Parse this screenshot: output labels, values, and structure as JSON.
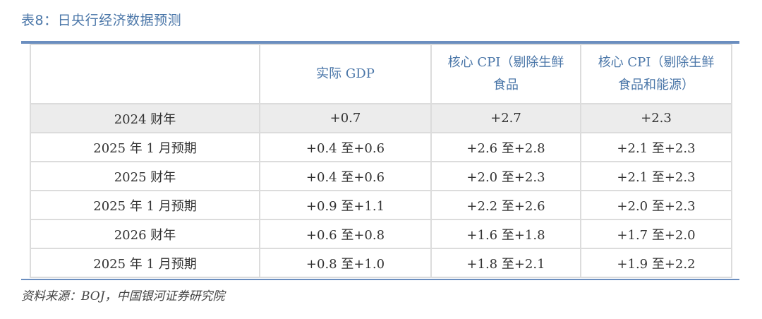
{
  "caption": "表8：日央行经济数据预测",
  "table": {
    "headers": [
      "",
      "实际 GDP",
      "核心 CPI（剔除生鲜食品",
      "核心 CPI（剔除生鲜食品和能源）"
    ],
    "rows": [
      [
        "2024 财年",
        "+0.7",
        "+2.7",
        "+2.3"
      ],
      [
        "2025 年 1 月预期",
        "+0.4 至+0.6",
        "+2.6 至+2.8",
        "+2.1 至+2.3"
      ],
      [
        "2025 财年",
        "+0.4 至+0.6",
        "+2.0 至+2.3",
        "+2.1 至+2.3"
      ],
      [
        "2025 年 1 月预期",
        "+0.9 至+1.1",
        "+2.2 至+2.6",
        "+2.0 至+2.3"
      ],
      [
        "2026 财年",
        "+0.6 至+0.8",
        "+1.6 至+1.8",
        "+1.7 至+2.0"
      ],
      [
        "2025 年 1 月预期",
        "+0.8 至+1.0",
        "+1.8 至+2.1",
        "+1.9 至+2.2"
      ]
    ]
  },
  "source": "资料来源：BOJ，中国银河证券研究院",
  "colors": {
    "accent": "#4a76a8",
    "rule": "#6b8ebf",
    "grid": "#dcdcdc",
    "highlight_row": "#ececec"
  }
}
